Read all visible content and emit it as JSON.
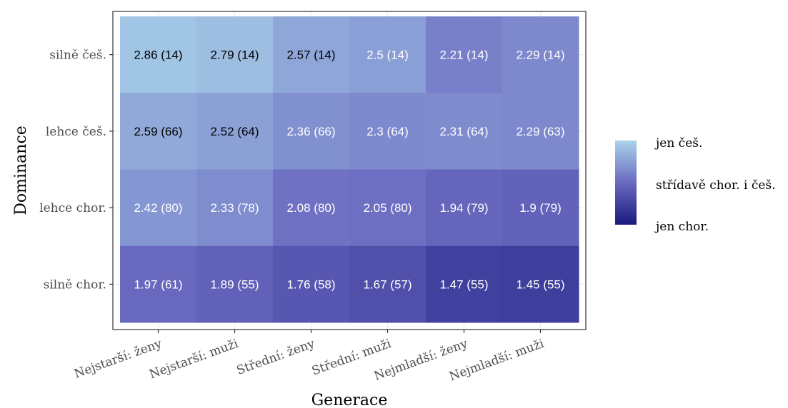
{
  "chart_data": {
    "type": "heatmap",
    "xlabel": "Generace",
    "ylabel": "Dominance",
    "x_categories": [
      "Nejstarší: ženy",
      "Nejstarší: muži",
      "Střední: ženy",
      "Střední: muži",
      "Nejmladší: ženy",
      "Nejmladší: muži"
    ],
    "y_categories": [
      "silně češ.",
      "lehce češ.",
      "lehce chor.",
      "silně chor."
    ],
    "cells": [
      [
        {
          "value": 2.86,
          "label": "2.86 (14)"
        },
        {
          "value": 2.79,
          "label": "2.79 (14)"
        },
        {
          "value": 2.57,
          "label": "2.57 (14)"
        },
        {
          "value": 2.5,
          "label": "2.5 (14)"
        },
        {
          "value": 2.21,
          "label": "2.21 (14)"
        },
        {
          "value": 2.29,
          "label": "2.29 (14)"
        }
      ],
      [
        {
          "value": 2.59,
          "label": "2.59 (66)"
        },
        {
          "value": 2.52,
          "label": "2.52 (64)"
        },
        {
          "value": 2.36,
          "label": "2.36 (66)"
        },
        {
          "value": 2.3,
          "label": "2.3 (64)"
        },
        {
          "value": 2.31,
          "label": "2.31 (64)"
        },
        {
          "value": 2.29,
          "label": "2.29 (63)"
        }
      ],
      [
        {
          "value": 2.42,
          "label": "2.42 (80)"
        },
        {
          "value": 2.33,
          "label": "2.33 (78)"
        },
        {
          "value": 2.08,
          "label": "2.08 (80)"
        },
        {
          "value": 2.05,
          "label": "2.05 (80)"
        },
        {
          "value": 1.94,
          "label": "1.94 (79)"
        },
        {
          "value": 1.9,
          "label": "1.9 (79)"
        }
      ],
      [
        {
          "value": 1.97,
          "label": "1.97 (61)"
        },
        {
          "value": 1.89,
          "label": "1.89 (55)"
        },
        {
          "value": 1.76,
          "label": "1.76 (58)"
        },
        {
          "value": 1.67,
          "label": "1.67 (57)"
        },
        {
          "value": 1.47,
          "label": "1.47 (55)"
        },
        {
          "value": 1.45,
          "label": "1.45 (55)"
        }
      ]
    ],
    "color_scale": {
      "domain": [
        1,
        3
      ],
      "low_color": "#1a1a80",
      "mid_color": "#6a6ac0",
      "high_color": "#aad4ea",
      "label_threshold": 2.5,
      "light_text_color": "#ffffff",
      "dark_text_color": "#000000"
    },
    "legend": {
      "position": "right",
      "labels": [
        "jen češ.",
        "střídavě chor. i češ.",
        "jen chor."
      ]
    },
    "grid": true,
    "panel_border": true
  }
}
